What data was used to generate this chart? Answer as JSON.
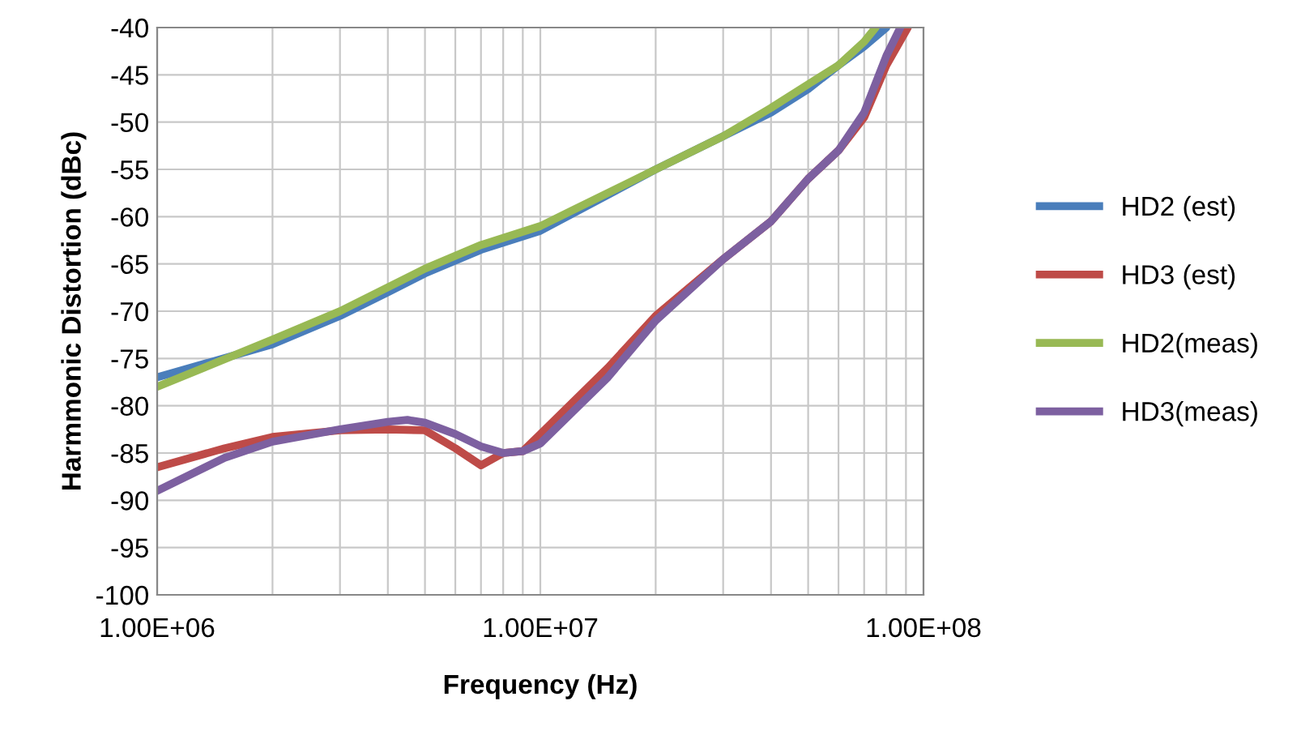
{
  "chart_data": {
    "type": "line",
    "xlabel": "Frequency (Hz)",
    "ylabel": "Harmmonic Distortion (dBc)",
    "log": "x",
    "grid": true,
    "legend": "right",
    "marker": "none",
    "line_style": "solid",
    "xlim": [
      1000000,
      100000000
    ],
    "xticks": [
      {
        "value": 1000000,
        "label": "1.00E+06"
      },
      {
        "value": 10000000,
        "label": "1.00E+07"
      },
      {
        "value": 100000000,
        "label": "1.00E+08"
      }
    ],
    "ylim": [
      -100,
      -40
    ],
    "yticks": [
      -100,
      -95,
      -90,
      -85,
      -80,
      -75,
      -70,
      -65,
      -60,
      -55,
      -50,
      -45,
      -40
    ],
    "series": [
      {
        "name": "HD2 (est)",
        "color": "#4a7ebb",
        "x": [
          1000000,
          2000000,
          3000000,
          4000000,
          5000000,
          7000000,
          10000000,
          20000000,
          30000000,
          40000000,
          50000000,
          60000000,
          70000000,
          80000000
        ],
        "values": [
          -77,
          -73.5,
          -70.5,
          -68,
          -66,
          -63.5,
          -61.5,
          -55,
          -51.5,
          -49,
          -46.5,
          -44,
          -42,
          -40
        ]
      },
      {
        "name": "HD3 (est)",
        "color": "#be4b48",
        "x": [
          1000000,
          1500000,
          2000000,
          3000000,
          4000000,
          5000000,
          6000000,
          7000000,
          8000000,
          9000000,
          10000000,
          15000000,
          20000000,
          30000000,
          40000000,
          50000000,
          60000000,
          70000000,
          80000000,
          91000000
        ],
        "values": [
          -86.5,
          -84.5,
          -83.3,
          -82.6,
          -82.5,
          -82.6,
          -84.5,
          -86.3,
          -85,
          -84.8,
          -83,
          -76,
          -70.5,
          -64.5,
          -60.5,
          -56,
          -53,
          -49.5,
          -44,
          -40
        ]
      },
      {
        "name": "HD2(meas)",
        "color": "#98b954",
        "x": [
          1000000,
          2000000,
          3000000,
          5000000,
          7000000,
          10000000,
          20000000,
          30000000,
          40000000,
          50000000,
          60000000,
          70000000,
          75000000
        ],
        "values": [
          -78,
          -73,
          -70,
          -65.5,
          -63,
          -61,
          -55,
          -51.5,
          -48.5,
          -46,
          -44,
          -41.5,
          -40
        ]
      },
      {
        "name": "HD3(meas)",
        "color": "#7d60a0",
        "x": [
          1000000,
          1500000,
          2000000,
          3000000,
          4000000,
          4500000,
          5000000,
          6000000,
          7000000,
          8000000,
          9000000,
          10000000,
          15000000,
          20000000,
          30000000,
          40000000,
          50000000,
          60000000,
          70000000,
          80000000,
          87000000
        ],
        "values": [
          -89,
          -85.5,
          -83.8,
          -82.5,
          -81.7,
          -81.5,
          -81.8,
          -83,
          -84.3,
          -85,
          -84.8,
          -84,
          -77,
          -71,
          -64.5,
          -60.5,
          -56,
          -53,
          -49,
          -43,
          -40
        ]
      }
    ]
  }
}
